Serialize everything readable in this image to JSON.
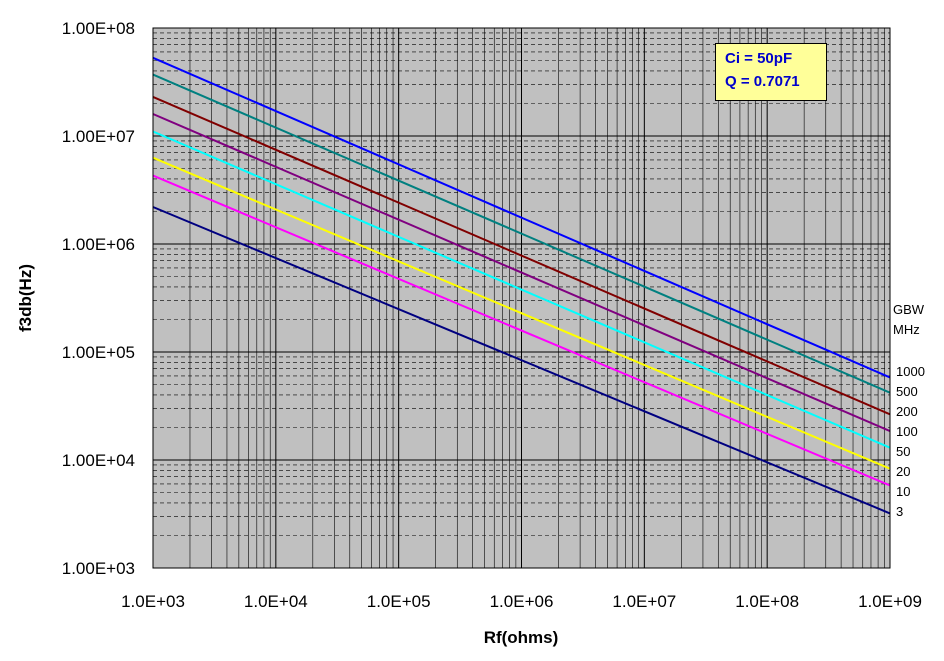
{
  "chart_data": {
    "type": "line",
    "xlabel": "Rf(ohms)",
    "ylabel": "f3db(Hz)",
    "xscale": "log",
    "yscale": "log",
    "xlim": [
      1000,
      1000000000
    ],
    "ylim": [
      1000,
      100000000
    ],
    "x_ticks": [
      "1.0E+03",
      "1.0E+04",
      "1.0E+05",
      "1.0E+06",
      "1.0E+07",
      "1.0E+08",
      "1.0E+09"
    ],
    "y_ticks": [
      "1.00E+03",
      "1.00E+04",
      "1.00E+05",
      "1.00E+06",
      "1.00E+07",
      "1.00E+08"
    ],
    "grid": "major and minor",
    "plot_background": "#c0c0c0",
    "annotation": [
      "Ci = 50pF",
      "Q = 0.7071"
    ],
    "legend_title": [
      "GBW",
      "MHz"
    ],
    "legend_position": "right",
    "series": [
      {
        "name": "1000",
        "color": "#0000ff",
        "x": [
          1000,
          1000000000
        ],
        "y": [
          53000000,
          58000
        ]
      },
      {
        "name": "500",
        "color": "#008080",
        "x": [
          1000,
          1000000000
        ],
        "y": [
          37000000,
          42000
        ]
      },
      {
        "name": "200",
        "color": "#800000",
        "x": [
          1000,
          1000000000
        ],
        "y": [
          23000000,
          26500
        ]
      },
      {
        "name": "100",
        "color": "#800080",
        "x": [
          1000,
          1000000000
        ],
        "y": [
          16000000,
          18500
        ]
      },
      {
        "name": "50",
        "color": "#00ffff",
        "x": [
          1000,
          1000000000
        ],
        "y": [
          11000000,
          13000
        ]
      },
      {
        "name": "20",
        "color": "#ffff00",
        "x": [
          1000,
          1000000000
        ],
        "y": [
          6300000,
          8300
        ]
      },
      {
        "name": "10",
        "color": "#ff00ff",
        "x": [
          1000,
          1000000000
        ],
        "y": [
          4300000,
          5800
        ]
      },
      {
        "name": "3",
        "color": "#000080",
        "x": [
          1000,
          1000000000
        ],
        "y": [
          2200000,
          3200
        ]
      }
    ]
  }
}
